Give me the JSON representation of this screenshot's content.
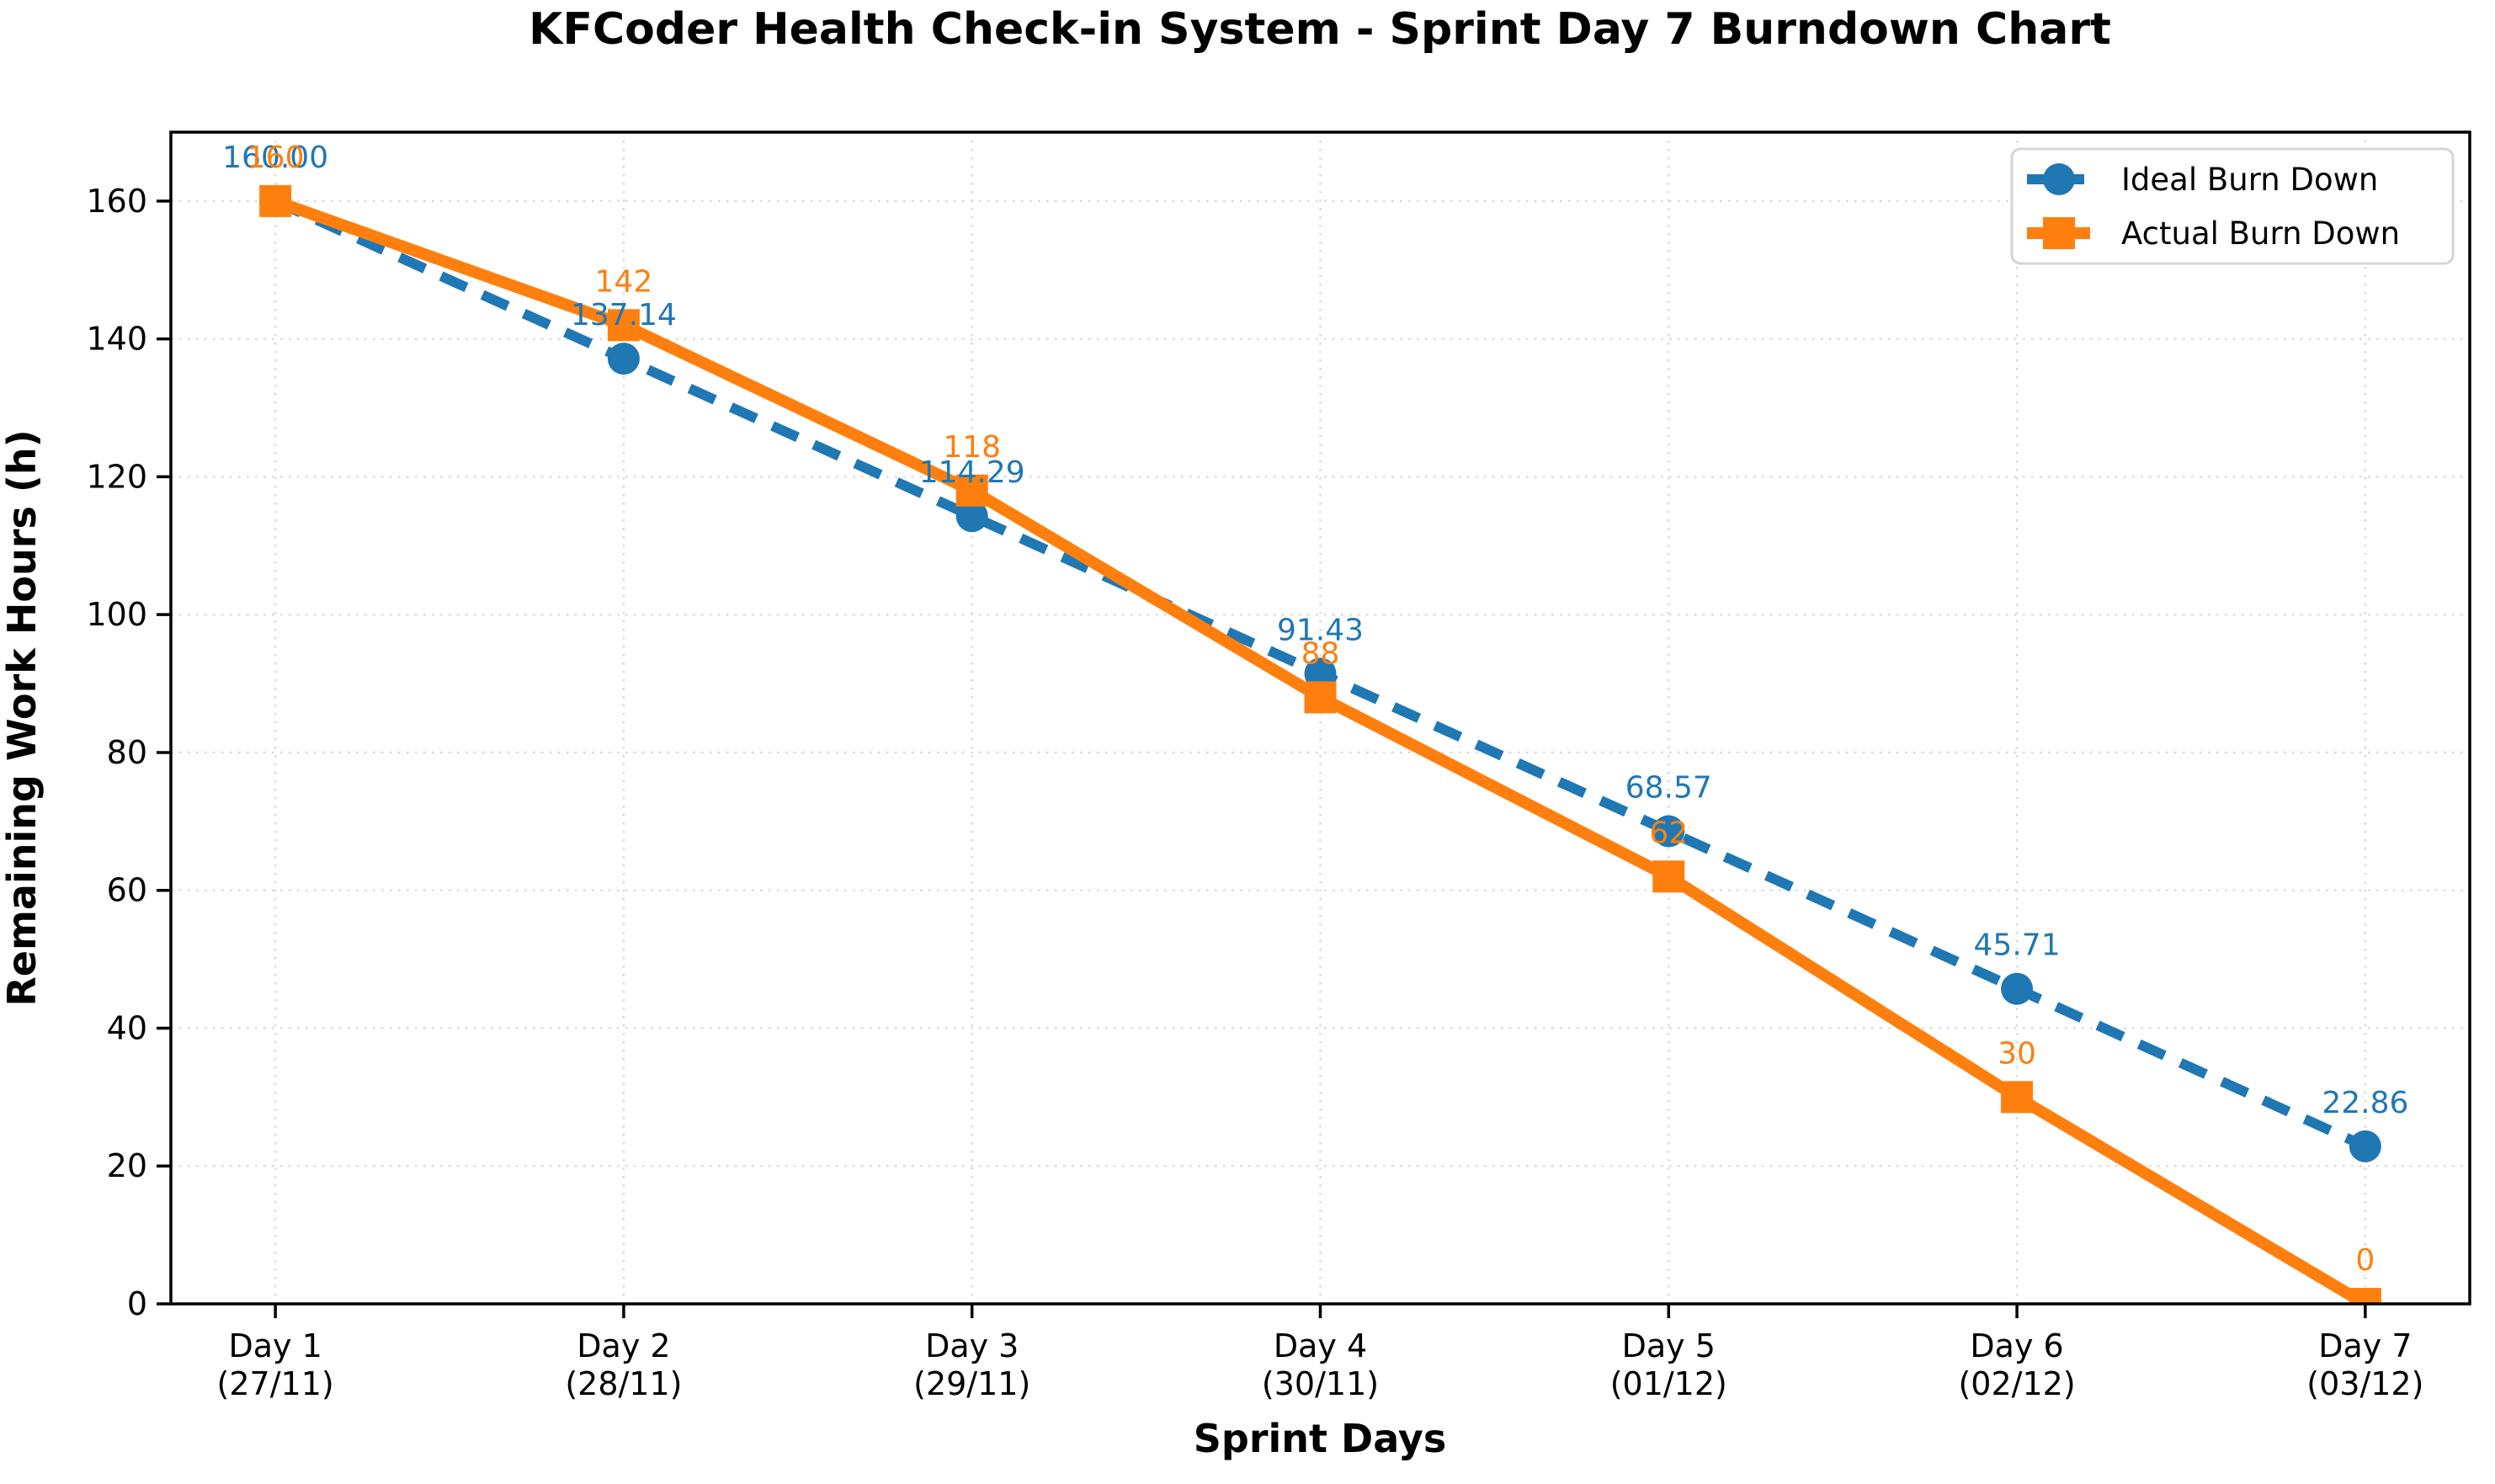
{
  "chart_data": {
    "type": "line",
    "title": "KFCoder Health Check-in System - Sprint Day 7 Burndown Chart",
    "xlabel": "Sprint Days",
    "ylabel": "Remaining Work Hours (h)",
    "categories": [
      {
        "day": "Day 1",
        "date": "(27/11)"
      },
      {
        "day": "Day 2",
        "date": "(28/11)"
      },
      {
        "day": "Day 3",
        "date": "(29/11)"
      },
      {
        "day": "Day 4",
        "date": "(30/11)"
      },
      {
        "day": "Day 5",
        "date": "(01/12)"
      },
      {
        "day": "Day 6",
        "date": "(02/12)"
      },
      {
        "day": "Day 7",
        "date": "(03/12)"
      }
    ],
    "series": [
      {
        "name": "Ideal Burn Down",
        "color": "#1f77b4",
        "marker": "circle",
        "line_style": "dashed",
        "values": [
          160,
          137.14,
          114.29,
          91.43,
          68.57,
          45.71,
          22.86
        ],
        "labels": [
          "160.00",
          "137.14",
          "114.29",
          "91.43",
          "68.57",
          "45.71",
          "22.86"
        ]
      },
      {
        "name": "Actual Burn Down",
        "color": "#ff7f0e",
        "marker": "square",
        "line_style": "solid",
        "values": [
          160,
          142,
          118,
          88,
          62,
          30,
          0
        ],
        "labels": [
          "160",
          "142",
          "118",
          "88",
          "62",
          "30",
          "0"
        ]
      }
    ],
    "yticks": [
      0,
      20,
      40,
      60,
      80,
      100,
      120,
      140,
      160
    ],
    "ylim": [
      0,
      170
    ],
    "grid": true,
    "grid_color": "#d9d9d9",
    "spine_color": "#000000",
    "background_color": "#ffffff",
    "legend_position": "upper right"
  }
}
